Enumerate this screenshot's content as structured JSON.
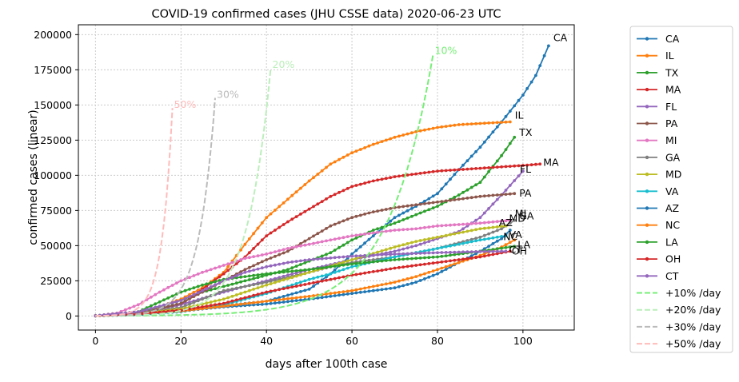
{
  "chart_data": {
    "type": "line",
    "title": "COVID-19 confirmed cases (JHU CSSE data) 2020-06-23 UTC",
    "xlabel": "days after 100th case",
    "ylabel": "confirmed cases (linear)",
    "xlim": [
      -4,
      112
    ],
    "ylim": [
      -10000,
      207000
    ],
    "xticks": [
      0,
      20,
      40,
      60,
      80,
      100
    ],
    "xtick_labels": [
      "0",
      "20",
      "40",
      "60",
      "80",
      "100"
    ],
    "yticks": [
      0,
      25000,
      50000,
      75000,
      100000,
      125000,
      150000,
      175000,
      200000
    ],
    "ytick_labels": [
      "0",
      "25000",
      "50000",
      "75000",
      "100000",
      "125000",
      "150000",
      "175000",
      "200000"
    ],
    "grid": true,
    "legend_position": "outside-right",
    "series": [
      {
        "name": "CA",
        "color": "#1f77b4",
        "end_label": "CA",
        "points": [
          [
            0,
            100
          ],
          [
            10,
            1500
          ],
          [
            20,
            4000
          ],
          [
            30,
            7200
          ],
          [
            40,
            10500
          ],
          [
            50,
            19000
          ],
          [
            55,
            30000
          ],
          [
            60,
            44000
          ],
          [
            65,
            57000
          ],
          [
            70,
            70000
          ],
          [
            75,
            78000
          ],
          [
            80,
            87000
          ],
          [
            85,
            104000
          ],
          [
            90,
            120000
          ],
          [
            95,
            138000
          ],
          [
            100,
            157000
          ],
          [
            103,
            171000
          ],
          [
            106,
            192000
          ]
        ]
      },
      {
        "name": "IL",
        "color": "#ff7f0e",
        "end_label": "IL",
        "points": [
          [
            0,
            100
          ],
          [
            10,
            1200
          ],
          [
            20,
            12000
          ],
          [
            25,
            20000
          ],
          [
            30,
            31000
          ],
          [
            35,
            51000
          ],
          [
            40,
            70000
          ],
          [
            45,
            83000
          ],
          [
            50,
            96000
          ],
          [
            55,
            108000
          ],
          [
            60,
            116000
          ],
          [
            65,
            122000
          ],
          [
            70,
            127000
          ],
          [
            75,
            131000
          ],
          [
            80,
            134000
          ],
          [
            85,
            136000
          ],
          [
            91,
            137000
          ],
          [
            97,
            138000
          ]
        ]
      },
      {
        "name": "TX",
        "color": "#2ca02c",
        "end_label": "TX",
        "points": [
          [
            0,
            100
          ],
          [
            10,
            2500
          ],
          [
            20,
            11000
          ],
          [
            25,
            17000
          ],
          [
            30,
            21000
          ],
          [
            35,
            25000
          ],
          [
            40,
            29000
          ],
          [
            45,
            33000
          ],
          [
            50,
            39000
          ],
          [
            55,
            45000
          ],
          [
            60,
            54000
          ],
          [
            65,
            61000
          ],
          [
            70,
            66000
          ],
          [
            75,
            72000
          ],
          [
            80,
            78000
          ],
          [
            85,
            86000
          ],
          [
            90,
            95000
          ],
          [
            95,
            114000
          ],
          [
            98,
            127000
          ]
        ]
      },
      {
        "name": "MA",
        "color": "#d62728",
        "end_label": "MA",
        "points": [
          [
            0,
            100
          ],
          [
            10,
            2000
          ],
          [
            20,
            8000
          ],
          [
            30,
            30000
          ],
          [
            35,
            42000
          ],
          [
            40,
            57000
          ],
          [
            45,
            67000
          ],
          [
            50,
            76000
          ],
          [
            55,
            85000
          ],
          [
            60,
            92000
          ],
          [
            65,
            96000
          ],
          [
            70,
            99000
          ],
          [
            75,
            101000
          ],
          [
            80,
            103000
          ],
          [
            90,
            105000
          ],
          [
            95,
            106000
          ],
          [
            100,
            107000
          ],
          [
            104,
            108000
          ]
        ]
      },
      {
        "name": "FL",
        "color": "#9467bd",
        "end_label": "FL",
        "points": [
          [
            0,
            100
          ],
          [
            10,
            2000
          ],
          [
            20,
            8000
          ],
          [
            30,
            17000
          ],
          [
            40,
            25000
          ],
          [
            50,
            33000
          ],
          [
            60,
            40000
          ],
          [
            70,
            46000
          ],
          [
            75,
            50000
          ],
          [
            80,
            55000
          ],
          [
            85,
            60000
          ],
          [
            90,
            70000
          ],
          [
            95,
            86000
          ],
          [
            100,
            103000
          ]
        ]
      },
      {
        "name": "PA",
        "color": "#8c564b",
        "end_label": "PA",
        "points": [
          [
            0,
            100
          ],
          [
            10,
            1500
          ],
          [
            20,
            9000
          ],
          [
            25,
            17000
          ],
          [
            30,
            25000
          ],
          [
            35,
            33000
          ],
          [
            40,
            40000
          ],
          [
            45,
            46000
          ],
          [
            50,
            55000
          ],
          [
            55,
            64000
          ],
          [
            60,
            70000
          ],
          [
            65,
            74000
          ],
          [
            70,
            77000
          ],
          [
            75,
            79000
          ],
          [
            80,
            81000
          ],
          [
            85,
            83000
          ],
          [
            90,
            85000
          ],
          [
            98,
            87000
          ]
        ]
      },
      {
        "name": "MI",
        "color": "#e377c2",
        "end_label": "MI",
        "points": [
          [
            0,
            100
          ],
          [
            5,
            2000
          ],
          [
            10,
            8000
          ],
          [
            15,
            17000
          ],
          [
            20,
            25000
          ],
          [
            25,
            31000
          ],
          [
            30,
            36000
          ],
          [
            35,
            41000
          ],
          [
            40,
            44000
          ],
          [
            45,
            48000
          ],
          [
            50,
            51000
          ],
          [
            55,
            54000
          ],
          [
            60,
            57000
          ],
          [
            65,
            59000
          ],
          [
            70,
            61000
          ],
          [
            75,
            62000
          ],
          [
            80,
            64000
          ],
          [
            85,
            65000
          ],
          [
            90,
            66000
          ],
          [
            97,
            68000
          ]
        ]
      },
      {
        "name": "GA",
        "color": "#7f7f7f",
        "end_label": "GA",
        "points": [
          [
            0,
            100
          ],
          [
            10,
            2000
          ],
          [
            20,
            6000
          ],
          [
            30,
            18000
          ],
          [
            40,
            24000
          ],
          [
            50,
            31000
          ],
          [
            55,
            35000
          ],
          [
            60,
            38000
          ],
          [
            70,
            42000
          ],
          [
            80,
            48000
          ],
          [
            90,
            56000
          ],
          [
            95,
            62000
          ],
          [
            98,
            68000
          ]
        ]
      },
      {
        "name": "MD",
        "color": "#bcbd22",
        "end_label": "MD",
        "points": [
          [
            0,
            100
          ],
          [
            10,
            1500
          ],
          [
            20,
            5000
          ],
          [
            30,
            12000
          ],
          [
            40,
            22000
          ],
          [
            50,
            31000
          ],
          [
            60,
            40000
          ],
          [
            70,
            49000
          ],
          [
            75,
            53000
          ],
          [
            80,
            56000
          ],
          [
            85,
            59000
          ],
          [
            90,
            62000
          ],
          [
            96,
            64000
          ]
        ]
      },
      {
        "name": "VA",
        "color": "#17becf",
        "end_label": "VA",
        "points": [
          [
            0,
            100
          ],
          [
            10,
            1000
          ],
          [
            20,
            3000
          ],
          [
            30,
            8000
          ],
          [
            40,
            16000
          ],
          [
            50,
            26000
          ],
          [
            55,
            30000
          ],
          [
            60,
            35000
          ],
          [
            70,
            42000
          ],
          [
            75,
            45000
          ],
          [
            80,
            48000
          ],
          [
            85,
            51000
          ],
          [
            90,
            54000
          ],
          [
            96,
            57000
          ]
        ]
      },
      {
        "name": "AZ",
        "color": "#1f77b4",
        "end_label": "AZ",
        "points": [
          [
            0,
            100
          ],
          [
            10,
            1200
          ],
          [
            20,
            3500
          ],
          [
            30,
            6500
          ],
          [
            40,
            8500
          ],
          [
            50,
            12000
          ],
          [
            60,
            16000
          ],
          [
            70,
            20000
          ],
          [
            75,
            24000
          ],
          [
            80,
            30000
          ],
          [
            85,
            38000
          ],
          [
            90,
            46000
          ],
          [
            95,
            55000
          ],
          [
            97,
            61000
          ]
        ]
      },
      {
        "name": "NC",
        "color": "#ff7f0e",
        "end_label": "NC",
        "points": [
          [
            0,
            100
          ],
          [
            10,
            1500
          ],
          [
            20,
            3500
          ],
          [
            30,
            7000
          ],
          [
            40,
            10500
          ],
          [
            50,
            14000
          ],
          [
            60,
            18000
          ],
          [
            65,
            21000
          ],
          [
            70,
            24000
          ],
          [
            75,
            28000
          ],
          [
            80,
            33000
          ],
          [
            85,
            38000
          ],
          [
            90,
            43000
          ],
          [
            95,
            49000
          ],
          [
            98,
            54000
          ]
        ]
      },
      {
        "name": "LA",
        "color": "#2ca02c",
        "end_label": "LA",
        "points": [
          [
            0,
            100
          ],
          [
            10,
            3000
          ],
          [
            15,
            10000
          ],
          [
            20,
            17000
          ],
          [
            25,
            22000
          ],
          [
            30,
            26000
          ],
          [
            40,
            30000
          ],
          [
            50,
            33000
          ],
          [
            60,
            37000
          ],
          [
            70,
            40000
          ],
          [
            80,
            42000
          ],
          [
            90,
            46000
          ],
          [
            98,
            49500
          ]
        ]
      },
      {
        "name": "OH",
        "color": "#d62728",
        "end_label": "OH",
        "points": [
          [
            0,
            100
          ],
          [
            10,
            1500
          ],
          [
            20,
            4000
          ],
          [
            30,
            9000
          ],
          [
            40,
            17000
          ],
          [
            50,
            23000
          ],
          [
            60,
            29000
          ],
          [
            70,
            34000
          ],
          [
            80,
            38000
          ],
          [
            90,
            42000
          ],
          [
            97,
            46000
          ]
        ]
      },
      {
        "name": "CT",
        "color": "#9467bd",
        "end_label": "CT",
        "points": [
          [
            0,
            100
          ],
          [
            10,
            3000
          ],
          [
            20,
            11000
          ],
          [
            25,
            18000
          ],
          [
            30,
            25000
          ],
          [
            35,
            31000
          ],
          [
            40,
            35000
          ],
          [
            45,
            38000
          ],
          [
            50,
            40000
          ],
          [
            60,
            42500
          ],
          [
            70,
            44000
          ],
          [
            80,
            45000
          ],
          [
            90,
            45800
          ],
          [
            96,
            46000
          ]
        ]
      },
      {
        "name": "+10% /day",
        "color": "#77ee77",
        "dashed": true,
        "end_label": "10%",
        "growth": 1.1,
        "start": 100,
        "x_end": 79
      },
      {
        "name": "+20% /day",
        "color": "#bbeebb",
        "dashed": true,
        "end_label": "20%",
        "growth": 1.2,
        "start": 100,
        "x_end": 41
      },
      {
        "name": "+30% /day",
        "color": "#bbbbbb",
        "dashed": true,
        "end_label": "30%",
        "growth": 1.3,
        "start": 100,
        "x_end": 28
      },
      {
        "name": "+50% /day",
        "color": "#ffbbbb",
        "dashed": true,
        "end_label": "50%",
        "growth": 1.5,
        "start": 100,
        "x_end": 18
      }
    ]
  }
}
